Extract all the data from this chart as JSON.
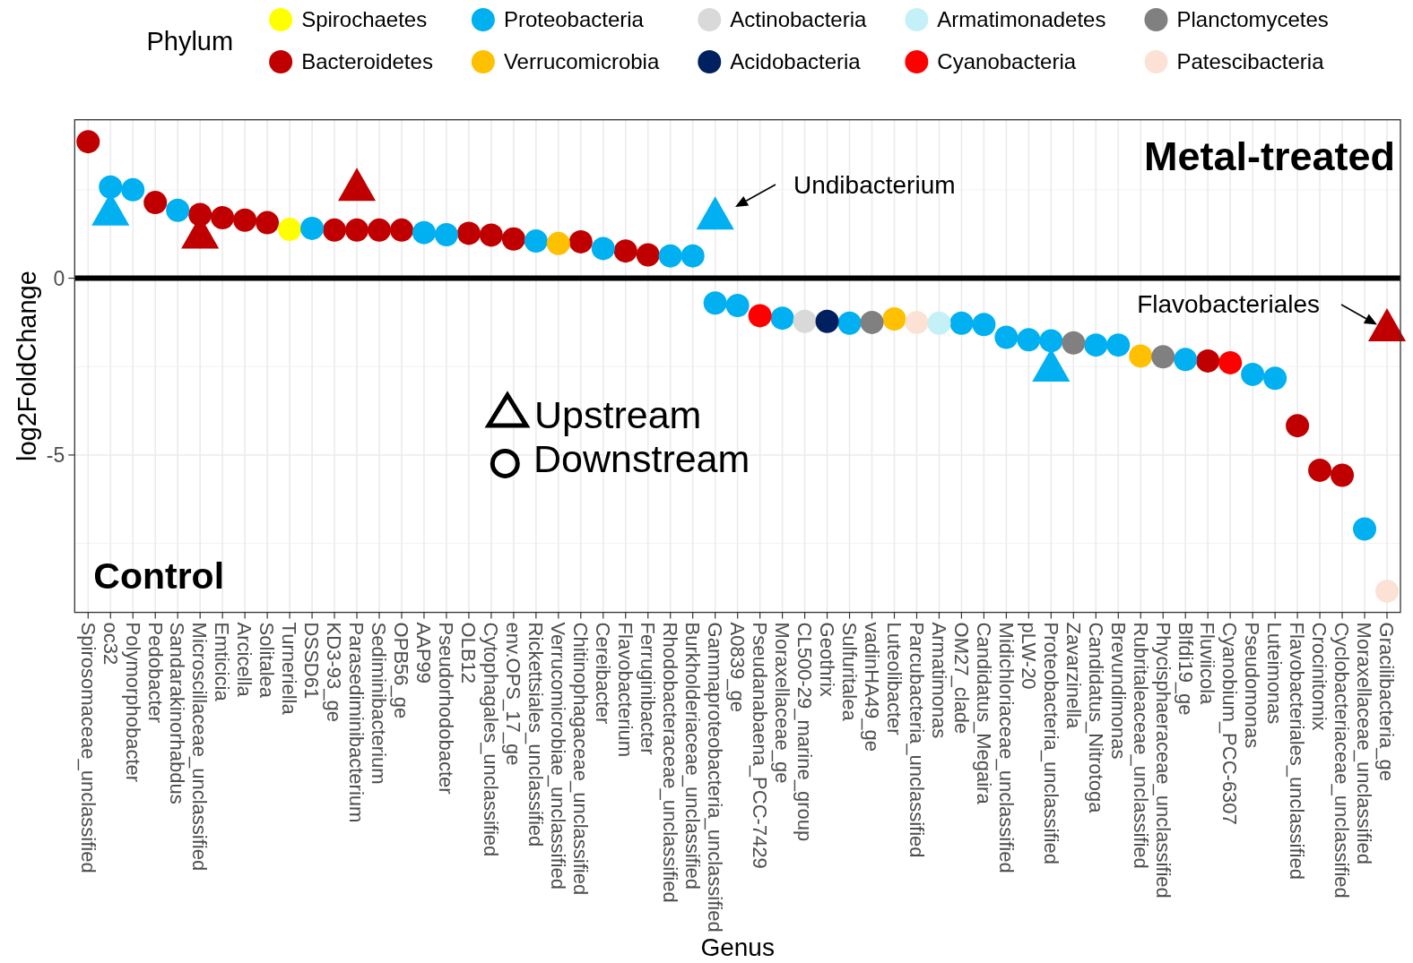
{
  "chart_data": {
    "type": "scatter",
    "marker": "circle",
    "xlabel": "Genus",
    "ylabel": "log2FoldChange",
    "legend": "top",
    "legend_title": "Phylum",
    "grid": true,
    "ylim": [
      -9.45,
      4.48
    ],
    "yticks": [
      -5,
      0
    ],
    "ref_lines": [
      {
        "axis": "y",
        "value": 0,
        "color": "#000000"
      }
    ],
    "categories": [
      "Spirosomaceae_unclassified",
      "oc32",
      "Polymorphobacter",
      "Pedobacter",
      "Sandarakinorhabdus",
      "Microscillaceae_unclassified",
      "Emticicia",
      "Arcicella",
      "Solitalea",
      "Turneriella",
      "DSSD61",
      "KD3-93_ge",
      "Parasediminibacterium",
      "Sediminibacterium",
      "OPB56_ge",
      "AAP99",
      "Pseudorhodobacter",
      "OLB12",
      "Cytophagales_unclassified",
      "env.OPS_17_ge",
      "Rickettsiales_unclassified",
      "Verrucomicrobiae_unclassified",
      "Chitinophagaceae_unclassified",
      "Cereibacter",
      "Flavobacterium",
      "Ferruginibacter",
      "Rhodobacteraceae_unclassified",
      "Burkholderiaceae_unclassified",
      "Gammaproteobacteria_unclassified",
      "A0839_ge",
      "Pseudanabaena_PCC-7429",
      "Moraxellaceae_ge",
      "CL500-29_marine_group",
      "Geothrix",
      "Sulfuritalea",
      "vadinHA49_ge",
      "Luteolibacter",
      "Parcubacteria_unclassified",
      "Armatimonas",
      "OM27_clade",
      "Candidatus_Megaira",
      "Midichloriaceae_unclassified",
      "pLW-20",
      "Proteobacteria_unclassified",
      "Zavarzinella",
      "Candidatus_Nitrotoga",
      "Brevundimonas",
      "Rubritaleaceae_unclassified",
      "Phycisphaeraceae_unclassified",
      "Blfdi19_ge",
      "Fluviicola",
      "Cyanobium_PCC-6307",
      "Pseudomonas",
      "Luteimonas",
      "Flavobacteriales_unclassified",
      "Crocinitomix",
      "Cyclobacteriaceae_unclassified",
      "Moraxellaceae_unclassified",
      "Gracilibacteria_ge"
    ],
    "series": [
      {
        "color": "#00b0f0",
        "marker": "triangle",
        "values": [
          null,
          1.8,
          null,
          null,
          null,
          null,
          null,
          null,
          null,
          null,
          null,
          null,
          null,
          null,
          null,
          null,
          null,
          null,
          null,
          null,
          null,
          null,
          null,
          null,
          null,
          null,
          null,
          null,
          1.69,
          null,
          null,
          null,
          null,
          null,
          null,
          null,
          null,
          null,
          null,
          null,
          null,
          null,
          null,
          -2.61,
          null,
          null,
          null,
          null,
          null,
          null,
          null,
          null,
          null,
          null,
          null,
          null,
          null,
          null,
          null
        ]
      },
      {
        "color": "#c00000",
        "marker": "triangle",
        "values": [
          null,
          null,
          null,
          null,
          null,
          1.15,
          null,
          null,
          null,
          null,
          null,
          null,
          2.5,
          null,
          null,
          null,
          null,
          null,
          null,
          null,
          null,
          null,
          null,
          null,
          null,
          null,
          null,
          null,
          null,
          null,
          null,
          null,
          null,
          null,
          null,
          null,
          null,
          null,
          null,
          null,
          null,
          null,
          null,
          null,
          null,
          null,
          null,
          null,
          null,
          null,
          null,
          null,
          null,
          null,
          null,
          null,
          null,
          null,
          -1.47
        ]
      },
      {
        "name": "Spirochaetes",
        "color": "#ffff00",
        "values": [
          null,
          null,
          null,
          null,
          null,
          null,
          null,
          null,
          null,
          1.38,
          null,
          null,
          null,
          null,
          null,
          null,
          null,
          null,
          null,
          null,
          null,
          null,
          null,
          null,
          null,
          null,
          null,
          null,
          null,
          null,
          null,
          null,
          null,
          null,
          null,
          null,
          null,
          null,
          null,
          null,
          null,
          null,
          null,
          null,
          null,
          null,
          null,
          null,
          null,
          null,
          null,
          null,
          null,
          null,
          null,
          null,
          null,
          null,
          null
        ]
      },
      {
        "name": "Bacteroidetes",
        "color": "#c00000",
        "values": [
          3.86,
          null,
          null,
          2.14,
          null,
          1.8,
          1.71,
          1.64,
          1.57,
          null,
          null,
          1.36,
          1.36,
          1.36,
          1.36,
          null,
          null,
          1.27,
          1.22,
          1.11,
          null,
          null,
          1.03,
          null,
          0.77,
          0.66,
          null,
          null,
          null,
          null,
          null,
          null,
          null,
          null,
          null,
          null,
          null,
          null,
          null,
          null,
          null,
          null,
          null,
          null,
          null,
          null,
          null,
          null,
          null,
          null,
          -2.34,
          null,
          null,
          null,
          -4.17,
          -5.43,
          -5.57,
          null,
          null
        ]
      },
      {
        "name": "Proteobacteria",
        "color": "#00b0f0",
        "values": [
          null,
          2.58,
          2.5,
          null,
          1.92,
          null,
          null,
          null,
          null,
          null,
          1.41,
          null,
          null,
          null,
          null,
          1.29,
          1.23,
          null,
          null,
          null,
          1.05,
          null,
          null,
          0.84,
          null,
          null,
          0.63,
          0.63,
          -0.7,
          -0.77,
          null,
          -1.13,
          null,
          null,
          -1.27,
          null,
          null,
          null,
          null,
          -1.27,
          -1.31,
          -1.67,
          -1.74,
          -1.77,
          null,
          -1.89,
          -1.89,
          null,
          null,
          -2.3,
          null,
          null,
          -2.72,
          -2.83,
          null,
          null,
          null,
          -7.09,
          null
        ]
      },
      {
        "name": "Verrucomicrobia",
        "color": "#ffc000",
        "values": [
          null,
          null,
          null,
          null,
          null,
          null,
          null,
          null,
          null,
          null,
          null,
          null,
          null,
          null,
          null,
          null,
          null,
          null,
          null,
          null,
          null,
          0.98,
          null,
          null,
          null,
          null,
          null,
          null,
          null,
          null,
          null,
          null,
          null,
          null,
          null,
          null,
          -1.15,
          null,
          null,
          null,
          null,
          null,
          null,
          null,
          null,
          null,
          null,
          -2.2,
          null,
          null,
          null,
          null,
          null,
          null,
          null,
          null,
          null,
          null,
          null
        ]
      },
      {
        "name": "Actinobacteria",
        "color": "#d9d9d9",
        "values": [
          null,
          null,
          null,
          null,
          null,
          null,
          null,
          null,
          null,
          null,
          null,
          null,
          null,
          null,
          null,
          null,
          null,
          null,
          null,
          null,
          null,
          null,
          null,
          null,
          null,
          null,
          null,
          null,
          null,
          null,
          null,
          null,
          -1.22,
          null,
          null,
          null,
          null,
          null,
          null,
          null,
          null,
          null,
          null,
          null,
          null,
          null,
          null,
          null,
          null,
          null,
          null,
          null,
          null,
          null,
          null,
          null,
          null,
          null,
          null
        ]
      },
      {
        "name": "Acidobacteria",
        "color": "#002060",
        "values": [
          null,
          null,
          null,
          null,
          null,
          null,
          null,
          null,
          null,
          null,
          null,
          null,
          null,
          null,
          null,
          null,
          null,
          null,
          null,
          null,
          null,
          null,
          null,
          null,
          null,
          null,
          null,
          null,
          null,
          null,
          null,
          null,
          null,
          -1.22,
          null,
          null,
          null,
          null,
          null,
          null,
          null,
          null,
          null,
          null,
          null,
          null,
          null,
          null,
          null,
          null,
          null,
          null,
          null,
          null,
          null,
          null,
          null,
          null,
          null
        ]
      },
      {
        "name": "Armatimonadetes",
        "color": "#c4f0f7",
        "values": [
          null,
          null,
          null,
          null,
          null,
          null,
          null,
          null,
          null,
          null,
          null,
          null,
          null,
          null,
          null,
          null,
          null,
          null,
          null,
          null,
          null,
          null,
          null,
          null,
          null,
          null,
          null,
          null,
          null,
          null,
          null,
          null,
          null,
          null,
          null,
          null,
          null,
          null,
          -1.27,
          null,
          null,
          null,
          null,
          null,
          null,
          null,
          null,
          null,
          null,
          null,
          null,
          null,
          null,
          null,
          null,
          null,
          null,
          null,
          null
        ]
      },
      {
        "name": "Cyanobacteria",
        "color": "#ff0000",
        "values": [
          null,
          null,
          null,
          null,
          null,
          null,
          null,
          null,
          null,
          null,
          null,
          null,
          null,
          null,
          null,
          null,
          null,
          null,
          null,
          null,
          null,
          null,
          null,
          null,
          null,
          null,
          null,
          null,
          null,
          null,
          -1.06,
          null,
          null,
          null,
          null,
          null,
          null,
          null,
          null,
          null,
          null,
          null,
          null,
          null,
          null,
          null,
          null,
          null,
          null,
          null,
          null,
          -2.39,
          null,
          null,
          null,
          null,
          null,
          null,
          null
        ]
      },
      {
        "name": "Planctomycetes",
        "color": "#808080",
        "values": [
          null,
          null,
          null,
          null,
          null,
          null,
          null,
          null,
          null,
          null,
          null,
          null,
          null,
          null,
          null,
          null,
          null,
          null,
          null,
          null,
          null,
          null,
          null,
          null,
          null,
          null,
          null,
          null,
          null,
          null,
          null,
          null,
          null,
          null,
          null,
          -1.25,
          null,
          null,
          null,
          null,
          null,
          null,
          null,
          null,
          -1.83,
          null,
          null,
          null,
          -2.22,
          null,
          null,
          null,
          null,
          null,
          null,
          null,
          null,
          null,
          null
        ]
      },
      {
        "name": "Patescibacteria",
        "color": "#fbe2d5",
        "values": [
          null,
          null,
          null,
          null,
          null,
          null,
          null,
          null,
          null,
          null,
          null,
          null,
          null,
          null,
          null,
          null,
          null,
          null,
          null,
          null,
          null,
          null,
          null,
          null,
          null,
          null,
          null,
          null,
          null,
          null,
          null,
          null,
          null,
          null,
          null,
          null,
          null,
          -1.25,
          null,
          null,
          null,
          null,
          null,
          null,
          null,
          null,
          null,
          null,
          null,
          null,
          null,
          null,
          null,
          null,
          null,
          null,
          null,
          null,
          -8.85
        ]
      }
    ],
    "annotations": [
      "Metal-treated",
      "Control",
      "Undibacterium",
      "Flavobacteriales",
      "Upstream",
      "Downstream"
    ]
  }
}
